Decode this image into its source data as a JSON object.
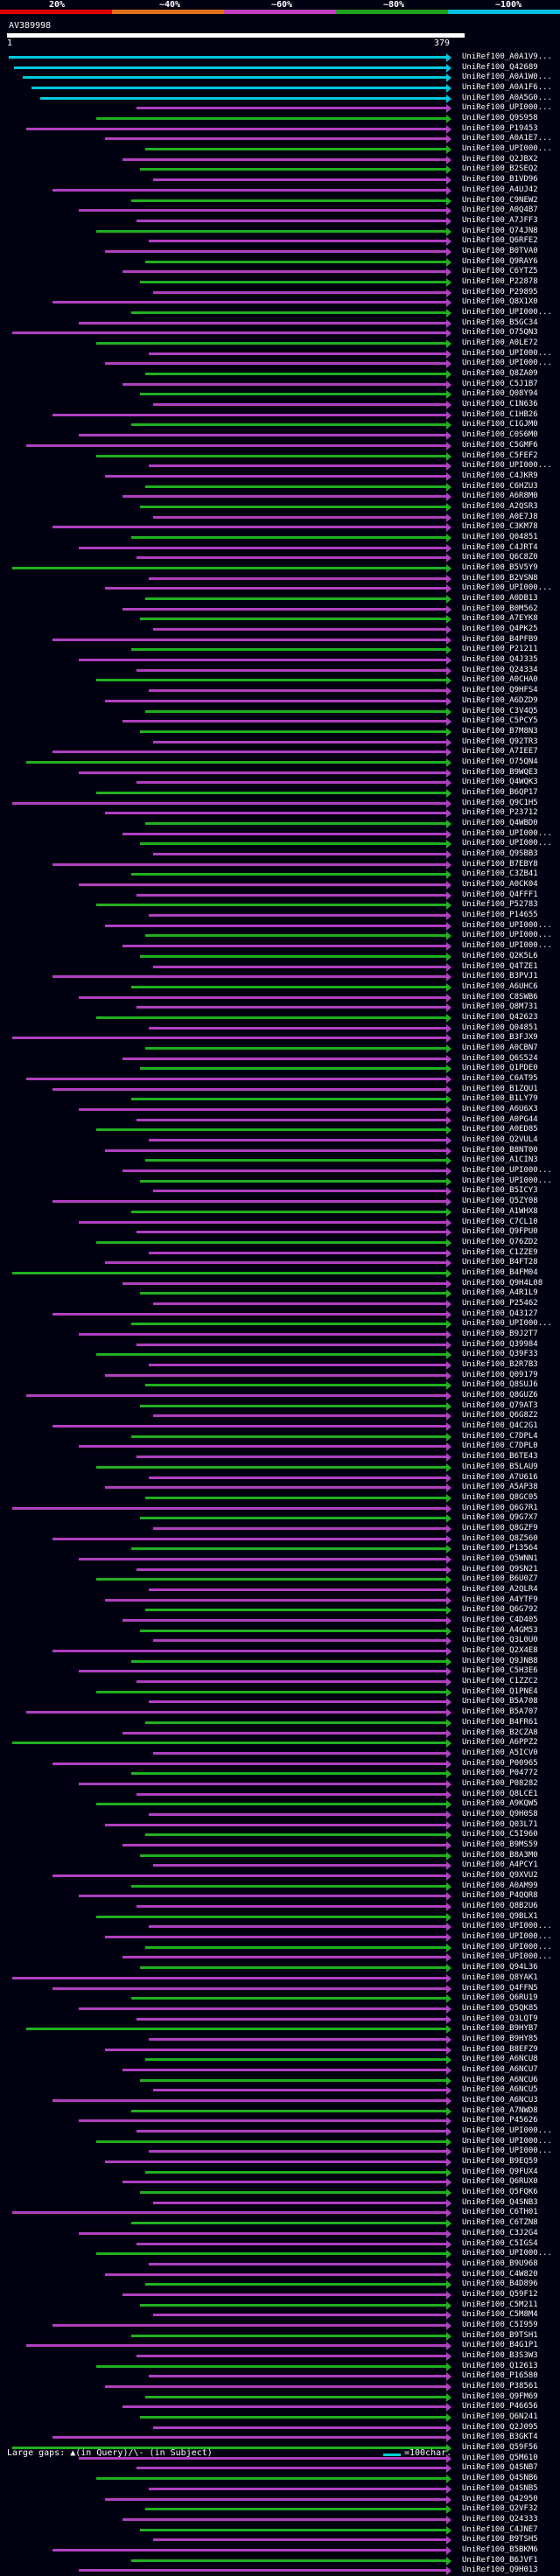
{
  "legend": {
    "labels": [
      "20%",
      "~40%",
      "~60%",
      "~80%",
      "~100%"
    ],
    "colors": [
      "#e00000",
      "#e07020",
      "#c040c0",
      "#20a020",
      "#00c0e0"
    ]
  },
  "query": {
    "title": "AV389998",
    "start": "1",
    "end": "379"
  },
  "colors": {
    "cyan": "#00c8e0",
    "green": "#20b020",
    "purple": "#b040c0",
    "red": "#d02020"
  },
  "hits": [
    "UniRef100_A0A1V9...",
    "UniRef100_Q42689",
    "UniRef100_A0A1W0...",
    "UniRef100_A0A1F6...",
    "UniRef100_A0A5G0...",
    "UniRef100_UPI000...",
    "UniRef100_Q9S958",
    "UniRef100_P19453",
    "UniRef100_A0A1E7...",
    "UniRef100_UPI000...",
    "UniRef100_Q2JBX2",
    "UniRef100_B2SEQ2",
    "UniRef100_B1VD96",
    "UniRef100_A4UJ42",
    "UniRef100_C9NEW2",
    "UniRef100_A0Q4B7",
    "UniRef100_A7JFF3",
    "UniRef100_Q74JN8",
    "UniRef100_Q6RFE2",
    "UniRef100_B0TVA0",
    "UniRef100_Q9RAY6",
    "UniRef100_C6YTZ5",
    "UniRef100_P22878",
    "UniRef100_P29895",
    "UniRef100_Q8X1X0",
    "UniRef100_UPI000...",
    "UniRef100_B5GC34",
    "UniRef100_O75QN3",
    "UniRef100_A0LE72",
    "UniRef100_UPI000...",
    "UniRef100_UPI000...",
    "UniRef100_Q8ZA09",
    "UniRef100_C5J1B7",
    "UniRef100_Q08Y94",
    "UniRef100_C1N636",
    "UniRef100_C1HB26",
    "UniRef100_C1GJM0",
    "UniRef100_C0S6M0",
    "UniRef100_C5GMF6",
    "UniRef100_C5FEF2",
    "UniRef100_UPI000...",
    "UniRef100_C4JKR9",
    "UniRef100_C6HZU3",
    "UniRef100_A6R8M0",
    "UniRef100_A2QSR3",
    "UniRef100_A0E7J8",
    "UniRef100_C3KM78",
    "UniRef100_Q04851",
    "UniRef100_C4JRT4",
    "UniRef100_Q6C8Z0",
    "UniRef100_B5V5Y9",
    "UniRef100_B2VSN8",
    "UniRef100_UPI000...",
    "UniRef100_A0DB13",
    "UniRef100_B0M562",
    "UniRef100_A7EYK8",
    "UniRef100_Q4PK25",
    "UniRef100_B4PFB9",
    "UniRef100_P21211",
    "UniRef100_Q4J335",
    "UniRef100_Q24334",
    "UniRef100_A0CHA0",
    "UniRef100_Q9HFS4",
    "UniRef100_A6DZD9",
    "UniRef100_C3V4Q5",
    "UniRef100_C5PCY5",
    "UniRef100_B7M8N3",
    "UniRef100_Q92TR3",
    "UniRef100_A7IEE7",
    "UniRef100_O75QN4",
    "UniRef100_B9WQE3",
    "UniRef100_Q4WQK3",
    "UniRef100_B6QP17",
    "UniRef100_Q9C1H5",
    "UniRef100_P23712",
    "UniRef100_Q4WBD0",
    "UniRef100_UPI000...",
    "UniRef100_UPI000...",
    "UniRef100_Q9SBB3",
    "UniRef100_B7EBY8",
    "UniRef100_C3ZB41",
    "UniRef100_A0CK04",
    "UniRef100_Q4FFF1",
    "UniRef100_P52783",
    "UniRef100_P14655",
    "UniRef100_UPI000...",
    "UniRef100_UPI000...",
    "UniRef100_UPI000...",
    "UniRef100_Q2K5L6",
    "UniRef100_Q4TZE1",
    "UniRef100_B3PVJ1",
    "UniRef100_A6UHC6",
    "UniRef100_C8SWB6",
    "UniRef100_Q8M731",
    "UniRef100_Q42623",
    "UniRef100_Q04851",
    "UniRef100_B3FJX9",
    "UniRef100_A0CBN7",
    "UniRef100_Q6S524",
    "UniRef100_Q1PDE0",
    "UniRef100_C6AT95",
    "UniRef100_B1ZQU1",
    "UniRef100_B1LY79",
    "UniRef100_A6U6X3",
    "UniRef100_A0PG44",
    "UniRef100_A0ED85",
    "UniRef100_Q2VUL4",
    "UniRef100_B8NT00",
    "UniRef100_A1CIN3",
    "UniRef100_UPI000...",
    "UniRef100_UPI000...",
    "UniRef100_B5ICY3",
    "UniRef100_Q5ZY08",
    "UniRef100_A1WHX8",
    "UniRef100_C7CL10",
    "UniRef100_Q9FPU0",
    "UniRef100_Q76ZD2",
    "UniRef100_C1ZZE9",
    "UniRef100_B4FT28",
    "UniRef100_B4FM04",
    "UniRef100_Q9H4L08",
    "UniRef100_A4R1L9",
    "UniRef100_P25462",
    "UniRef100_Q43127",
    "UniRef100_UPI000...",
    "UniRef100_B9J2T7",
    "UniRef100_Q39984",
    "UniRef100_Q39F33",
    "UniRef100_B2R7B3",
    "UniRef100_Q09179",
    "UniRef100_Q8SUJ6",
    "UniRef100_Q8GUZ6",
    "UniRef100_Q79AT3",
    "UniRef100_Q6G8Z2",
    "UniRef100_Q4C2G1",
    "UniRef100_C7DPL4",
    "UniRef100_C7DPL0",
    "UniRef100_B6TE43",
    "UniRef100_B5LAU9",
    "UniRef100_A7U616",
    "UniRef100_A5AP38",
    "UniRef100_Q8GC05",
    "UniRef100_Q6G7R1",
    "UniRef100_Q9G7X7",
    "UniRef100_Q8GZF9",
    "UniRef100_Q8Z560",
    "UniRef100_P13564",
    "UniRef100_Q5WNN1",
    "UniRef100_Q9SN21",
    "UniRef100_B6U0Z7",
    "UniRef100_A2QLR4",
    "UniRef100_A4YTF9",
    "UniRef100_Q6G792",
    "UniRef100_C4D405",
    "UniRef100_A4GM53",
    "UniRef100_Q3L0U0",
    "UniRef100_Q2X4E8",
    "UniRef100_Q9JNB8",
    "UniRef100_C5H3E6",
    "UniRef100_C1ZZC2",
    "UniRef100_Q1PNE4",
    "UniRef100_B5A708",
    "UniRef100_B5A707",
    "UniRef100_B4FR61",
    "UniRef100_B2CZA8",
    "UniRef100_A6PPZ2",
    "UniRef100_A5ICV0",
    "UniRef100_P00965",
    "UniRef100_P04772",
    "UniRef100_P08282",
    "UniRef100_Q8LCE1",
    "UniRef100_A9KQW5",
    "UniRef100_Q9H0S8",
    "UniRef100_Q03L71",
    "UniRef100_C5I960",
    "UniRef100_B9MS59",
    "UniRef100_B8A3M0",
    "UniRef100_A4PCY1",
    "UniRef100_Q9XVU2",
    "UniRef100_A0AM99",
    "UniRef100_P4QQR8",
    "UniRef100_Q8B2U6",
    "UniRef100_Q9BLX1",
    "UniRef100_UPI000...",
    "UniRef100_UPI000...",
    "UniRef100_UPI000...",
    "UniRef100_UPI000...",
    "UniRef100_Q94L36",
    "UniRef100_Q8YAK1",
    "UniRef100_Q4FFN5",
    "UniRef100_Q6RU19",
    "UniRef100_Q5QK85",
    "UniRef100_Q3LQT9",
    "UniRef100_B9HYB7",
    "UniRef100_B9HY85",
    "UniRef100_B8EFZ9",
    "UniRef100_A6NCU8",
    "UniRef100_A6NCU7",
    "UniRef100_A6NCU6",
    "UniRef100_A6NCU5",
    "UniRef100_A6NCU3",
    "UniRef100_A7NWD8",
    "UniRef100_P45626",
    "UniRef100_UPI000...",
    "UniRef100_UPI000...",
    "UniRef100_UPI000...",
    "UniRef100_B9EQ59",
    "UniRef100_Q9FUX4",
    "UniRef100_Q6RUX0",
    "UniRef100_Q5FQK6",
    "UniRef100_Q4SNB3",
    "UniRef100_C6TH01",
    "UniRef100_C6TZN8",
    "UniRef100_C3J2G4",
    "UniRef100_C5IGS4",
    "UniRef100_UPI000...",
    "UniRef100_B9U968",
    "UniRef100_C4W820",
    "UniRef100_B4D896",
    "UniRef100_Q59F12",
    "UniRef100_C5M211",
    "UniRef100_C5M8M4",
    "UniRef100_C5I959",
    "UniRef100_B9TSH1",
    "UniRef100_B4G1P1",
    "UniRef100_B3S3W3",
    "UniRef100_Q12613",
    "UniRef100_P16580",
    "UniRef100_P38561",
    "UniRef100_Q9FM69",
    "UniRef100_P46656",
    "UniRef100_Q6N241",
    "UniRef100_Q2J095",
    "UniRef100_B3GKT4",
    "UniRef100_Q59F56",
    "UniRef100_Q5M610",
    "UniRef100_Q4SNB7",
    "UniRef100_Q4SNB6",
    "UniRef100_Q4SNB5",
    "UniRef100_Q42950",
    "UniRef100_Q2VF32",
    "UniRef100_Q24333",
    "UniRef100_C4JNE7",
    "UniRef100_B9TSH5",
    "UniRef100_B5BKM6",
    "UniRef100_B6JVF1",
    "UniRef100_Q9H013"
  ],
  "footer": {
    "note": "Large gaps: ▲(in Query)/\\- (in Subject)",
    "scale": "=100char."
  }
}
